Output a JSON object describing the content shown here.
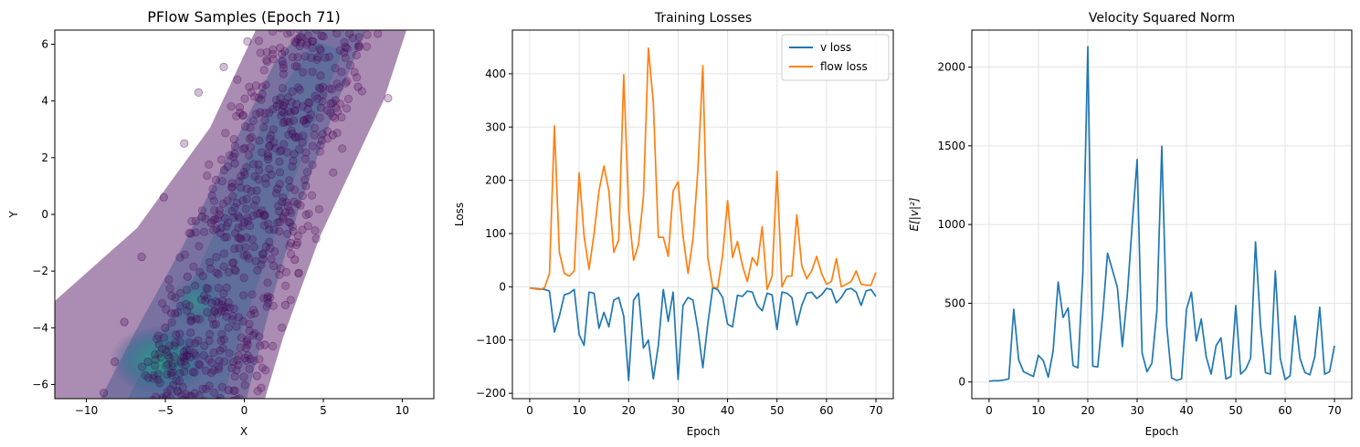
{
  "chart_data": [
    {
      "type": "scatter",
      "title": "PFlow Samples (Epoch 71)",
      "xlabel": "X",
      "ylabel": "Y",
      "xlim": [
        -12,
        12
      ],
      "ylim": [
        -6.5,
        6.5
      ],
      "xticks": [
        -10,
        -5,
        0,
        5,
        10
      ],
      "yticks": [
        -6,
        -4,
        -2,
        0,
        2,
        4,
        6
      ],
      "grid": false,
      "colormap": "viridis",
      "point_color": "#440154",
      "dense_color": "#21a685",
      "description_of_points": [
        {
          "x": -8.9,
          "y": -6.3
        },
        {
          "x": -8.2,
          "y": -5.2
        },
        {
          "x": -7.6,
          "y": -3.8
        },
        {
          "x": -6.5,
          "y": -1.5
        },
        {
          "x": -5.1,
          "y": 0.6
        },
        {
          "x": -3.8,
          "y": 2.5
        },
        {
          "x": -2.9,
          "y": 4.3
        },
        {
          "x": -1.3,
          "y": 5.2
        },
        {
          "x": 0.2,
          "y": 6.1
        },
        {
          "x": 2.4,
          "y": 5.4
        },
        {
          "x": 4.9,
          "y": 6.3
        },
        {
          "x": 6.4,
          "y": 5.9
        },
        {
          "x": 9.1,
          "y": 4.1
        },
        {
          "x": 7.2,
          "y": 4.5
        },
        {
          "x": 5.6,
          "y": 2.8
        },
        {
          "x": 3.9,
          "y": 1.0
        },
        {
          "x": 3.2,
          "y": -1.6
        },
        {
          "x": 2.6,
          "y": -3.2
        },
        {
          "x": 1.3,
          "y": -4.6
        },
        {
          "x": 0.8,
          "y": -5.7
        },
        {
          "x": -1.0,
          "y": -6.2
        },
        {
          "x": -6.1,
          "y": -5.2
        },
        {
          "x": -5.0,
          "y": -4.0
        },
        {
          "x": -3.6,
          "y": -2.2
        },
        {
          "x": -2.1,
          "y": -0.3
        },
        {
          "x": -0.6,
          "y": 1.8
        },
        {
          "x": 1.0,
          "y": 3.6
        },
        {
          "x": 2.1,
          "y": 0.9
        }
      ]
    },
    {
      "type": "line",
      "title": "Training Losses",
      "xlabel": "Epoch",
      "ylabel": "Loss",
      "xlim": [
        -3.5,
        73.5
      ],
      "ylim": [
        -210,
        482
      ],
      "xticks": [
        0,
        10,
        20,
        30,
        40,
        50,
        60,
        70
      ],
      "yticks": [
        -200,
        -100,
        0,
        100,
        200,
        300,
        400
      ],
      "grid": true,
      "legend": "top-right",
      "x": [
        0,
        1,
        2,
        3,
        4,
        5,
        6,
        7,
        8,
        9,
        10,
        11,
        12,
        13,
        14,
        15,
        16,
        17,
        18,
        19,
        20,
        21,
        22,
        23,
        24,
        25,
        26,
        27,
        28,
        29,
        30,
        31,
        32,
        33,
        34,
        35,
        36,
        37,
        38,
        39,
        40,
        41,
        42,
        43,
        44,
        45,
        46,
        47,
        48,
        49,
        50,
        51,
        52,
        53,
        54,
        55,
        56,
        57,
        58,
        59,
        60,
        61,
        62,
        63,
        64,
        65,
        66,
        67,
        68,
        69,
        70
      ],
      "series": [
        {
          "name": "v loss",
          "color": "#1f77b4",
          "values": [
            -2,
            -3,
            -4,
            -5,
            -8,
            -85,
            -55,
            -15,
            -12,
            -5,
            -90,
            -110,
            -10,
            -12,
            -78,
            -48,
            -75,
            -25,
            -20,
            -55,
            -176,
            -25,
            -12,
            -115,
            -100,
            -173,
            -110,
            -5,
            -65,
            -10,
            -174,
            -35,
            -20,
            -25,
            -80,
            -152,
            -70,
            -2,
            -5,
            -20,
            -70,
            -75,
            -16,
            -18,
            -8,
            -10,
            -35,
            -45,
            -12,
            -15,
            -80,
            -10,
            -12,
            -20,
            -72,
            -35,
            -12,
            -10,
            -22,
            -15,
            -3,
            -5,
            -30,
            -20,
            -5,
            -3,
            -10,
            -35,
            -8,
            -5,
            -18
          ]
        },
        {
          "name": "flow loss",
          "color": "#ff7f0e",
          "values": [
            -2,
            -4,
            -5,
            -2,
            25,
            302,
            65,
            25,
            20,
            30,
            214,
            95,
            33,
            100,
            180,
            227,
            180,
            65,
            88,
            398,
            142,
            50,
            80,
            170,
            448,
            345,
            93,
            93,
            57,
            180,
            197,
            95,
            25,
            90,
            220,
            415,
            55,
            0,
            -2,
            60,
            162,
            55,
            85,
            40,
            10,
            55,
            40,
            113,
            -5,
            20,
            217,
            0,
            20,
            20,
            135,
            40,
            15,
            30,
            57,
            25,
            5,
            10,
            53,
            0,
            5,
            10,
            30,
            5,
            3,
            3,
            27
          ]
        }
      ]
    },
    {
      "type": "line",
      "title": "Velocity Squared Norm",
      "xlabel": "Epoch",
      "ylabel": "E[|v|²]",
      "xlim": [
        -3.5,
        73.5
      ],
      "ylim": [
        -106,
        2235
      ],
      "xticks": [
        0,
        10,
        20,
        30,
        40,
        50,
        60,
        70
      ],
      "yticks": [
        0,
        500,
        1000,
        1500,
        2000
      ],
      "grid": true,
      "x": [
        0,
        1,
        2,
        3,
        4,
        5,
        6,
        7,
        8,
        9,
        10,
        11,
        12,
        13,
        14,
        15,
        16,
        17,
        18,
        19,
        20,
        21,
        22,
        23,
        24,
        25,
        26,
        27,
        28,
        29,
        30,
        31,
        32,
        33,
        34,
        35,
        36,
        37,
        38,
        39,
        40,
        41,
        42,
        43,
        44,
        45,
        46,
        47,
        48,
        49,
        50,
        51,
        52,
        53,
        54,
        55,
        56,
        57,
        58,
        59,
        60,
        61,
        62,
        63,
        64,
        65,
        66,
        67,
        68,
        69,
        70
      ],
      "series": [
        {
          "color": "#1f77b4",
          "values": [
            5,
            8,
            8,
            12,
            20,
            462,
            140,
            65,
            50,
            35,
            170,
            135,
            30,
            200,
            635,
            410,
            470,
            105,
            90,
            700,
            2130,
            100,
            95,
            420,
            818,
            710,
            600,
            225,
            550,
            1000,
            1413,
            185,
            65,
            120,
            450,
            1497,
            355,
            25,
            10,
            20,
            460,
            570,
            260,
            400,
            160,
            50,
            230,
            280,
            20,
            35,
            485,
            50,
            80,
            150,
            890,
            360,
            60,
            50,
            705,
            150,
            15,
            40,
            420,
            150,
            60,
            45,
            160,
            475,
            50,
            65,
            230
          ]
        }
      ]
    }
  ]
}
